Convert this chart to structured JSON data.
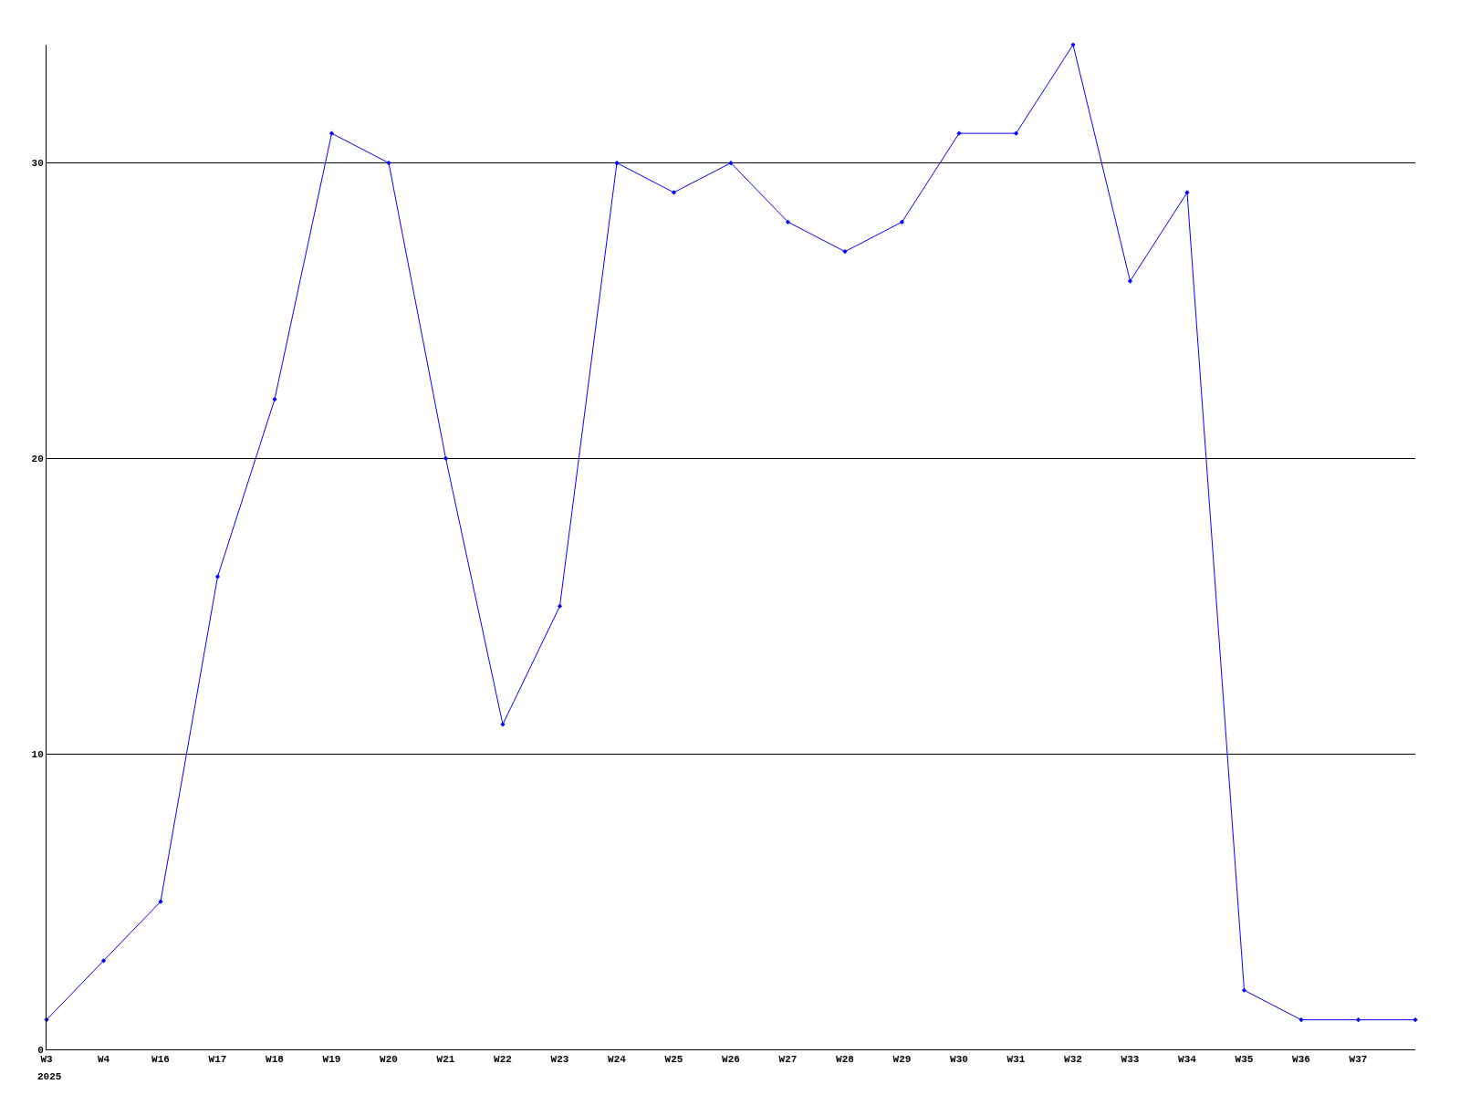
{
  "chart_data": {
    "type": "line",
    "categories": [
      "W3",
      "W4",
      "W16",
      "W17",
      "W18",
      "W19",
      "W20",
      "W21",
      "W22",
      "W23",
      "W24",
      "W25",
      "W26",
      "W27",
      "W28",
      "W29",
      "W30",
      "W31",
      "W32",
      "W33",
      "W34",
      "W35",
      "W36",
      "W37",
      null
    ],
    "series": [
      {
        "color": "#0000ff",
        "values": [
          1,
          3,
          5,
          16,
          22,
          31,
          30,
          20,
          11,
          15,
          30,
          29,
          30,
          28,
          27,
          28,
          31,
          31,
          34,
          26,
          29,
          2,
          1,
          1,
          1
        ]
      }
    ],
    "ylim": [
      0,
      34
    ],
    "yticks": [
      0,
      10,
      20,
      30
    ],
    "grid": "y",
    "marker": "diamond",
    "line_style": "solid",
    "annotations": [
      "2025"
    ]
  }
}
